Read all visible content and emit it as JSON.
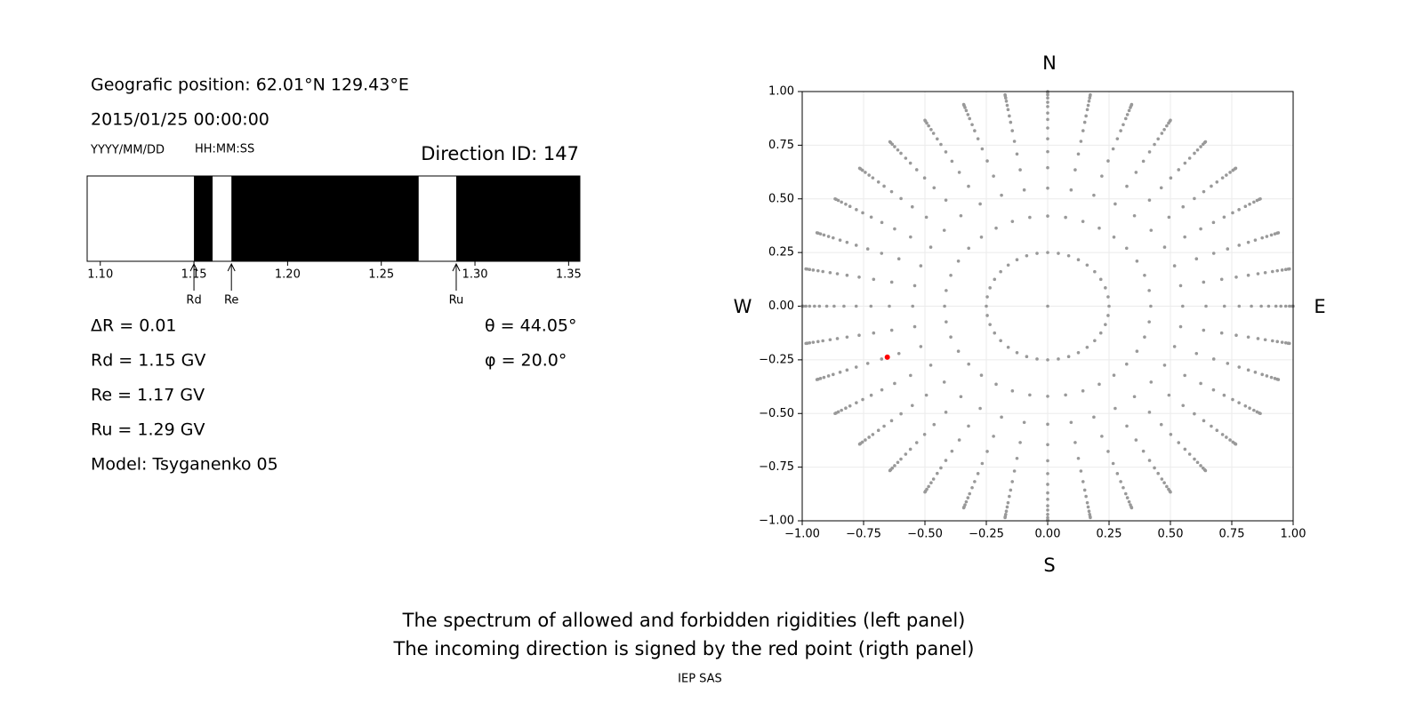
{
  "chart_data": [
    {
      "type": "spectrum",
      "position": "Geografic position: 62.01°N 129.43°E",
      "datetime": "2015/01/25 00:00:00",
      "date_format": "YYYY/MM/DD",
      "time_format": "HH:MM:SS",
      "title": "Direction ID: 147",
      "edges": [
        1.093,
        1.15,
        1.16,
        1.17,
        1.27,
        1.29,
        1.356
      ],
      "colors": [
        "#ffffff",
        "#000000",
        "#ffffff",
        "#000000",
        "#ffffff",
        "#000000"
      ],
      "xlim": [
        1.093,
        1.356
      ],
      "xticks": [
        {
          "value": 1.1,
          "label": "1.10"
        },
        {
          "value": 1.15,
          "label": "1.15"
        },
        {
          "value": 1.2,
          "label": "1.20"
        },
        {
          "value": 1.25,
          "label": "1.25"
        },
        {
          "value": 1.3,
          "label": "1.30"
        },
        {
          "value": 1.35,
          "label": "1.35"
        }
      ],
      "markers": [
        {
          "label": "Rd",
          "value": 1.15
        },
        {
          "label": "Re",
          "value": 1.17
        },
        {
          "label": "Ru",
          "value": 1.29
        }
      ],
      "info_lines": [
        "ΔR = 0.01",
        "Rd = 1.15 GV",
        "Re = 1.17 GV",
        "Ru = 1.29 GV",
        "Model: Tsyganenko 05"
      ],
      "angle_lines": [
        "θ = 44.05°",
        "φ = 20.0°"
      ]
    },
    {
      "type": "scatter",
      "compass": {
        "N": "N",
        "S": "S",
        "W": "W",
        "E": "E"
      },
      "xlim": [
        -1,
        1
      ],
      "ylim": [
        -1,
        1
      ],
      "xticks": [
        {
          "value": -1,
          "label": "−1.00"
        },
        {
          "value": -0.75,
          "label": "−0.75"
        },
        {
          "value": -0.5,
          "label": "−0.50"
        },
        {
          "value": -0.25,
          "label": "−0.25"
        },
        {
          "value": 0,
          "label": "0.00"
        },
        {
          "value": 0.25,
          "label": "0.25"
        },
        {
          "value": 0.5,
          "label": "0.50"
        },
        {
          "value": 0.75,
          "label": "0.75"
        },
        {
          "value": 1,
          "label": "1.00"
        }
      ],
      "yticks": [
        {
          "value": -1,
          "label": "−1.00"
        },
        {
          "value": -0.75,
          "label": "−0.75"
        },
        {
          "value": -0.5,
          "label": "−0.50"
        },
        {
          "value": -0.25,
          "label": "−0.25"
        },
        {
          "value": 0,
          "label": "0.00"
        },
        {
          "value": 0.25,
          "label": "0.25"
        },
        {
          "value": 0.5,
          "label": "0.50"
        },
        {
          "value": 0.75,
          "label": "0.75"
        },
        {
          "value": 1,
          "label": "1.00"
        }
      ],
      "grid": true,
      "color": "#999999",
      "center": [
        0,
        0
      ],
      "radii": [
        0.25,
        0.42,
        0.55,
        0.645,
        0.72,
        0.78,
        0.83,
        0.87,
        0.9,
        0.93,
        0.95,
        0.97,
        0.985,
        0.995,
        1.0
      ],
      "azimuths": [
        0,
        10,
        20,
        30,
        40,
        50,
        60,
        70,
        80,
        90,
        100,
        110,
        120,
        130,
        140,
        150,
        160,
        170,
        180,
        190,
        200,
        210,
        220,
        230,
        240,
        250,
        260,
        270,
        280,
        290,
        300,
        310,
        320,
        330,
        340,
        350
      ],
      "selected": {
        "theta": 44.05,
        "phi": 20.0,
        "color": "#ff0000"
      }
    }
  ],
  "footer": {
    "lines": [
      "The spectrum of allowed and forbidden rigidities (left panel)",
      "The incoming direction is signed by the red point (rigth panel)"
    ],
    "credit": "IEP SAS"
  }
}
